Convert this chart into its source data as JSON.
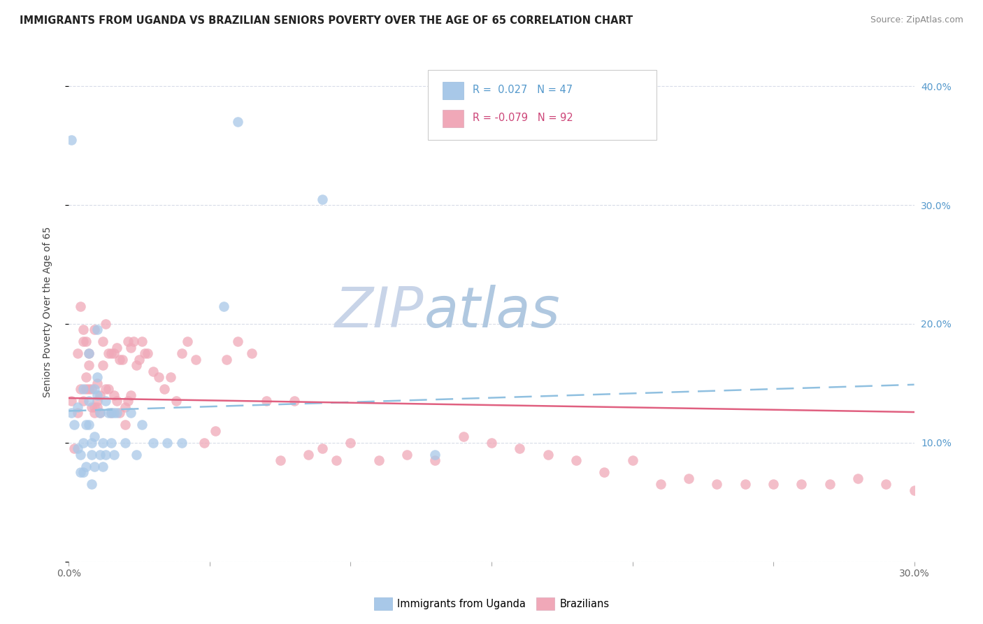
{
  "title": "IMMIGRANTS FROM UGANDA VS BRAZILIAN SENIORS POVERTY OVER THE AGE OF 65 CORRELATION CHART",
  "source": "Source: ZipAtlas.com",
  "ylabel": "Seniors Poverty Over the Age of 65",
  "xlim": [
    0,
    0.3
  ],
  "ylim": [
    0,
    0.42
  ],
  "y_tick_vals_right": [
    0.1,
    0.2,
    0.3,
    0.4
  ],
  "y_tick_labels_right": [
    "10.0%",
    "20.0%",
    "30.0%",
    "40.0%"
  ],
  "legend_uganda_R": "0.027",
  "legend_uganda_N": "47",
  "legend_brazil_R": "-0.079",
  "legend_brazil_N": "92",
  "color_uganda": "#a8c8e8",
  "color_brazil": "#f0a8b8",
  "trendline_uganda_color": "#90c0e0",
  "trendline_brazil_color": "#e06080",
  "background_color": "#ffffff",
  "grid_color": "#d8dce8",
  "watermark_ZIP": "#c8d4e8",
  "watermark_atlas": "#b0c8e0",
  "uganda_x": [
    0.001,
    0.002,
    0.003,
    0.003,
    0.004,
    0.004,
    0.005,
    0.005,
    0.005,
    0.006,
    0.006,
    0.007,
    0.007,
    0.007,
    0.008,
    0.008,
    0.008,
    0.009,
    0.009,
    0.009,
    0.01,
    0.01,
    0.01,
    0.011,
    0.011,
    0.012,
    0.012,
    0.013,
    0.013,
    0.014,
    0.015,
    0.015,
    0.016,
    0.016,
    0.017,
    0.02,
    0.022,
    0.024,
    0.026,
    0.03,
    0.035,
    0.04,
    0.055,
    0.06,
    0.09,
    0.13,
    0.001
  ],
  "uganda_y": [
    0.125,
    0.115,
    0.13,
    0.095,
    0.09,
    0.075,
    0.145,
    0.1,
    0.075,
    0.115,
    0.08,
    0.175,
    0.115,
    0.135,
    0.1,
    0.065,
    0.09,
    0.145,
    0.105,
    0.08,
    0.195,
    0.155,
    0.14,
    0.125,
    0.09,
    0.1,
    0.08,
    0.135,
    0.09,
    0.125,
    0.125,
    0.1,
    0.125,
    0.09,
    0.125,
    0.1,
    0.125,
    0.09,
    0.115,
    0.1,
    0.1,
    0.1,
    0.215,
    0.37,
    0.305,
    0.09,
    0.355
  ],
  "brazil_x": [
    0.001,
    0.002,
    0.003,
    0.003,
    0.004,
    0.004,
    0.005,
    0.005,
    0.006,
    0.006,
    0.007,
    0.007,
    0.007,
    0.008,
    0.008,
    0.009,
    0.009,
    0.009,
    0.01,
    0.01,
    0.01,
    0.011,
    0.011,
    0.012,
    0.012,
    0.013,
    0.013,
    0.014,
    0.014,
    0.015,
    0.015,
    0.016,
    0.016,
    0.017,
    0.017,
    0.018,
    0.018,
    0.019,
    0.02,
    0.02,
    0.021,
    0.021,
    0.022,
    0.022,
    0.023,
    0.024,
    0.025,
    0.026,
    0.027,
    0.028,
    0.03,
    0.032,
    0.034,
    0.036,
    0.038,
    0.04,
    0.042,
    0.045,
    0.048,
    0.052,
    0.056,
    0.06,
    0.065,
    0.07,
    0.075,
    0.08,
    0.085,
    0.09,
    0.095,
    0.1,
    0.11,
    0.12,
    0.13,
    0.14,
    0.15,
    0.16,
    0.17,
    0.18,
    0.19,
    0.2,
    0.21,
    0.22,
    0.23,
    0.24,
    0.25,
    0.26,
    0.27,
    0.28,
    0.29,
    0.3,
    0.005,
    0.006
  ],
  "brazil_y": [
    0.135,
    0.095,
    0.125,
    0.175,
    0.145,
    0.215,
    0.135,
    0.185,
    0.155,
    0.145,
    0.175,
    0.165,
    0.145,
    0.145,
    0.13,
    0.195,
    0.125,
    0.13,
    0.15,
    0.135,
    0.13,
    0.14,
    0.125,
    0.165,
    0.185,
    0.2,
    0.145,
    0.145,
    0.175,
    0.175,
    0.125,
    0.14,
    0.175,
    0.135,
    0.18,
    0.17,
    0.125,
    0.17,
    0.115,
    0.13,
    0.135,
    0.185,
    0.14,
    0.18,
    0.185,
    0.165,
    0.17,
    0.185,
    0.175,
    0.175,
    0.16,
    0.155,
    0.145,
    0.155,
    0.135,
    0.175,
    0.185,
    0.17,
    0.1,
    0.11,
    0.17,
    0.185,
    0.175,
    0.135,
    0.085,
    0.135,
    0.09,
    0.095,
    0.085,
    0.1,
    0.085,
    0.09,
    0.085,
    0.105,
    0.1,
    0.095,
    0.09,
    0.085,
    0.075,
    0.085,
    0.065,
    0.07,
    0.065,
    0.065,
    0.065,
    0.065,
    0.065,
    0.07,
    0.065,
    0.06,
    0.195,
    0.185
  ]
}
